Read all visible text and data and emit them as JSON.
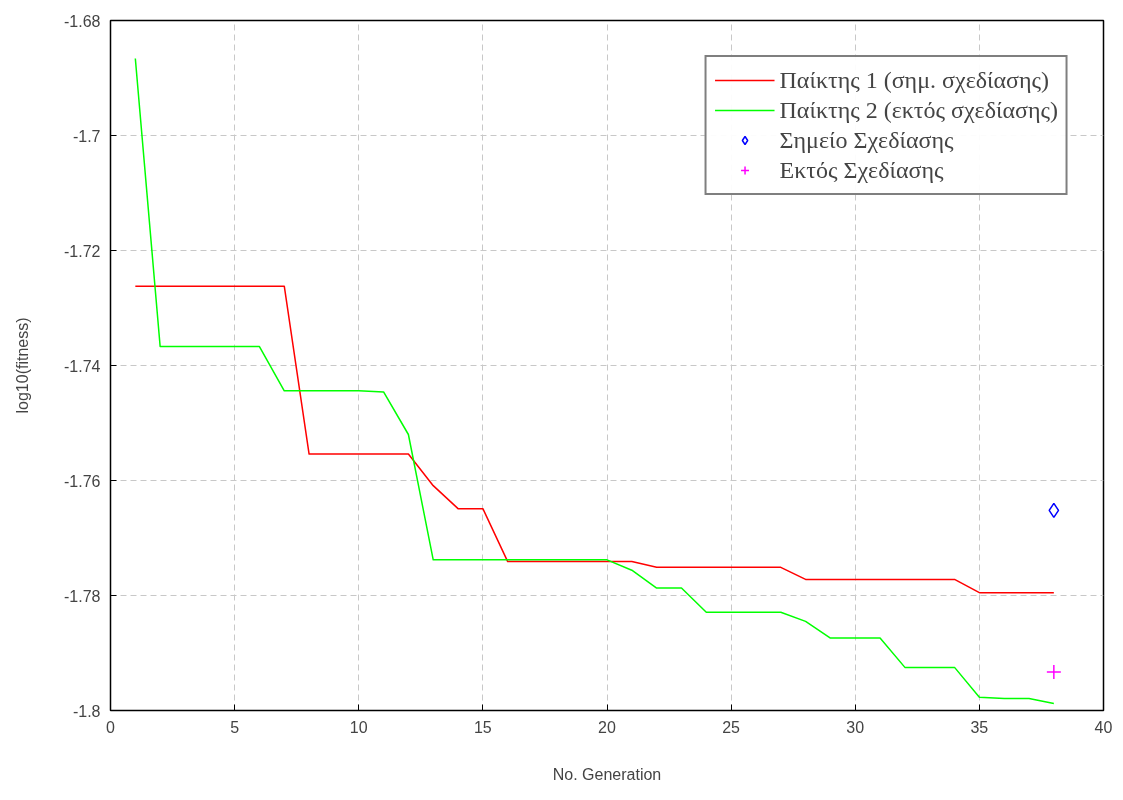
{
  "chart_data": {
    "type": "line",
    "xlabel": "No. Generation",
    "ylabel": "log10(fitness)",
    "xlim": [
      0,
      40
    ],
    "xticks": [
      0,
      5,
      10,
      15,
      20,
      25,
      30,
      35,
      40
    ],
    "ylim": [
      -1.8,
      -1.68
    ],
    "yticks": [
      -1.8,
      -1.78,
      -1.76,
      -1.74,
      -1.72,
      -1.7,
      -1.68
    ],
    "grid": true,
    "legend": "top right",
    "line_style": "solid",
    "marker": "none",
    "series": [
      {
        "name": "Παίκτης 1 (σημ. σχεδίασης)",
        "color": "#ff0000",
        "x": [
          1,
          2,
          3,
          4,
          5,
          6,
          7,
          8,
          9,
          10,
          11,
          12,
          13,
          14,
          15,
          16,
          17,
          18,
          19,
          20,
          21,
          22,
          23,
          24,
          25,
          26,
          27,
          28,
          29,
          30,
          31,
          32,
          33,
          34,
          35,
          36,
          37,
          38
        ],
        "values": [
          -1.7262,
          -1.7262,
          -1.7262,
          -1.7262,
          -1.7262,
          -1.7262,
          -1.7262,
          -1.7554,
          -1.7554,
          -1.7554,
          -1.7554,
          -1.7554,
          -1.7609,
          -1.7649,
          -1.7649,
          -1.7741,
          -1.7741,
          -1.7741,
          -1.7741,
          -1.7741,
          -1.7741,
          -1.7751,
          -1.7751,
          -1.7751,
          -1.7751,
          -1.7751,
          -1.7751,
          -1.7772,
          -1.7772,
          -1.7772,
          -1.7772,
          -1.7772,
          -1.7772,
          -1.7772,
          -1.7795,
          -1.7795,
          -1.7795,
          -1.7795
        ]
      },
      {
        "name": "Παίκτης 2 (εκτός σχεδίασης)",
        "color": "#00ff00",
        "x": [
          1,
          2,
          3,
          4,
          5,
          6,
          7,
          8,
          9,
          10,
          11,
          12,
          13,
          14,
          15,
          16,
          17,
          18,
          19,
          20,
          21,
          22,
          23,
          24,
          25,
          26,
          27,
          28,
          29,
          30,
          31,
          32,
          33,
          34,
          35,
          36,
          37,
          38
        ],
        "values": [
          -1.6866,
          -1.7367,
          -1.7367,
          -1.7367,
          -1.7367,
          -1.7367,
          -1.7444,
          -1.7444,
          -1.7444,
          -1.7444,
          -1.7446,
          -1.752,
          -1.7738,
          -1.7738,
          -1.7738,
          -1.7738,
          -1.7738,
          -1.7738,
          -1.7738,
          -1.7738,
          -1.7756,
          -1.7787,
          -1.7787,
          -1.7829,
          -1.7829,
          -1.7829,
          -1.7829,
          -1.7845,
          -1.7874,
          -1.7874,
          -1.7874,
          -1.7925,
          -1.7925,
          -1.7925,
          -1.7977,
          -1.7979,
          -1.7979,
          -1.7988
        ]
      },
      {
        "name": "Σημείο Σχεδίασης",
        "color": "#0000ff",
        "type": "scatter",
        "marker": "diamond",
        "x": [
          38
        ],
        "values": [
          -1.7652
        ]
      },
      {
        "name": "Εκτός Σχεδίασης",
        "color": "#ff00ff",
        "type": "scatter",
        "marker": "cross",
        "x": [
          38
        ],
        "values": [
          -1.7933
        ]
      }
    ]
  }
}
